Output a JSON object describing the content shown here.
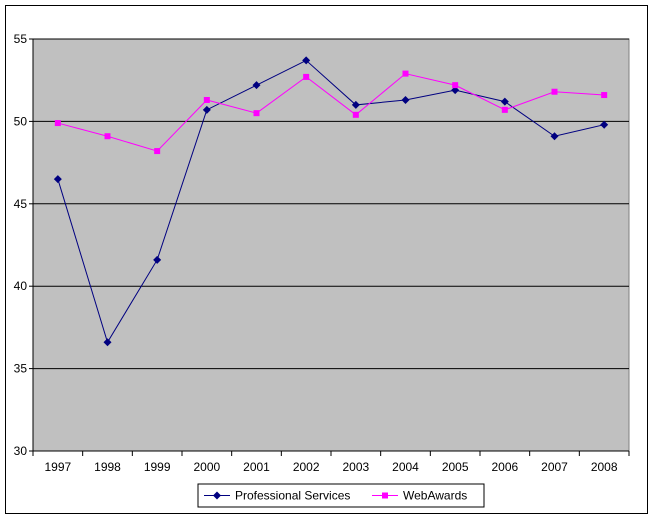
{
  "chart_data": {
    "type": "line",
    "title": "",
    "xlabel": "",
    "ylabel": "",
    "categories": [
      "1997",
      "1998",
      "1999",
      "2000",
      "2001",
      "2002",
      "2003",
      "2004",
      "2005",
      "2006",
      "2007",
      "2008"
    ],
    "ylim": [
      30,
      55
    ],
    "yticks": [
      30,
      35,
      40,
      45,
      50,
      55
    ],
    "grid": true,
    "legend_position": "bottom",
    "plot_background": "#c0c0c0",
    "series": [
      {
        "name": "Professional Services",
        "color": "#000080",
        "marker": "diamond",
        "values": [
          46.5,
          36.6,
          41.6,
          50.7,
          52.2,
          53.7,
          51.0,
          51.3,
          51.9,
          51.2,
          49.1,
          49.8
        ]
      },
      {
        "name": "WebAwards",
        "color": "#ff00ff",
        "marker": "square",
        "values": [
          49.9,
          49.1,
          48.2,
          51.3,
          50.5,
          52.7,
          50.4,
          52.9,
          52.2,
          50.7,
          51.8,
          51.6
        ]
      }
    ]
  }
}
